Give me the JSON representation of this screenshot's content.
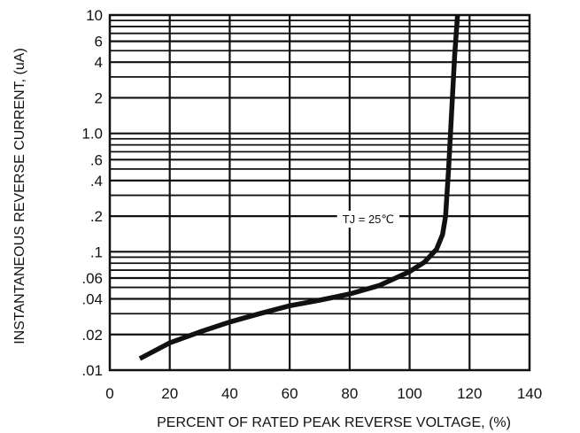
{
  "chart_data": {
    "type": "line",
    "title": "",
    "xlabel": "PERCENT OF RATED PEAK REVERSE VOLTAGE, (%)",
    "ylabel": "INSTANTANEOUS REVERSE CURRENT, (uA)",
    "x_scale": "linear",
    "y_scale": "log",
    "xlim": [
      0,
      140
    ],
    "ylim": [
      0.01,
      10
    ],
    "grid": true,
    "x_ticks": [
      0,
      20,
      40,
      60,
      80,
      100,
      120,
      140
    ],
    "x_tick_labels": [
      "0",
      "20",
      "40",
      "60",
      "80",
      "100",
      "120",
      "140"
    ],
    "y_ticks": [
      0.01,
      0.02,
      0.04,
      0.06,
      0.1,
      0.2,
      0.4,
      0.6,
      1,
      2,
      4,
      6,
      10
    ],
    "y_tick_labels": [
      ".01",
      ".02",
      ".04",
      ".06",
      ".1",
      ".2",
      ".4",
      ".6",
      "1.0",
      "2",
      "4",
      "6",
      "10"
    ],
    "y_minor_gridlines": [
      0.03,
      0.05,
      0.07,
      0.08,
      0.09,
      0.3,
      0.5,
      0.7,
      0.8,
      0.9,
      3,
      5,
      7,
      8,
      9
    ],
    "annotation": "TJ = 25℃",
    "annotation_at": {
      "x": 96,
      "y": 0.19
    },
    "series": [
      {
        "name": "",
        "color": "#111111",
        "x": [
          10,
          20,
          30,
          40,
          50,
          60,
          70,
          80,
          90,
          100,
          105,
          109,
          111,
          112,
          113,
          114,
          115,
          116
        ],
        "y": [
          0.0125,
          0.017,
          0.021,
          0.0255,
          0.03,
          0.035,
          0.039,
          0.044,
          0.052,
          0.068,
          0.082,
          0.105,
          0.14,
          0.2,
          0.5,
          1.5,
          4.5,
          10
        ]
      }
    ]
  }
}
